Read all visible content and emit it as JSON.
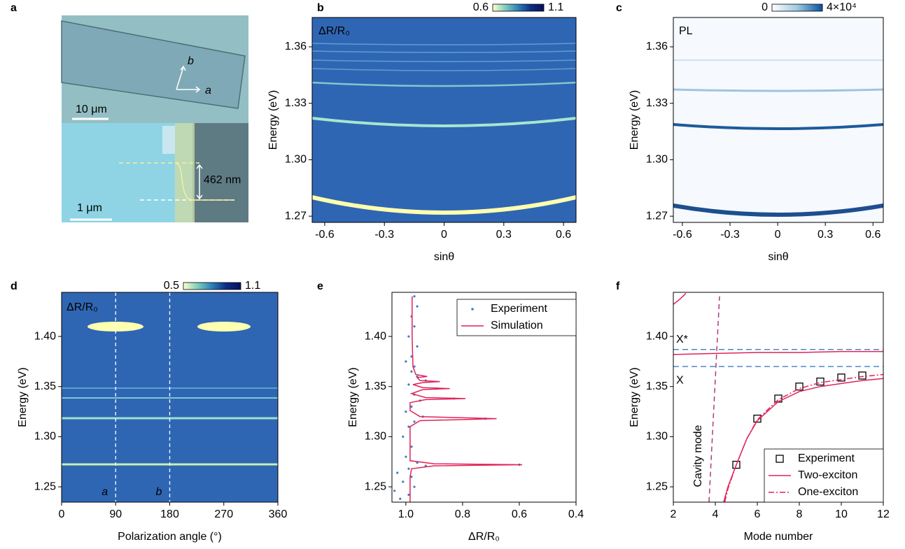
{
  "chart_data": [
    {
      "type": "image",
      "panel": "a",
      "labels": [
        "b",
        "a",
        "10 μm",
        "1 μm",
        "462 nm"
      ]
    },
    {
      "type": "heatmap",
      "panel": "b",
      "overlay_label": "ΔR/R₀",
      "xlabel": "sinθ",
      "ylabel": "Energy (eV)",
      "xlim": [
        -0.663,
        0.663
      ],
      "xticks": [
        -0.6,
        -0.3,
        0,
        0.3,
        0.6
      ],
      "ylim": [
        1.2667,
        1.3756
      ],
      "yticks": [
        1.27,
        {
          "value": 1.3,
          "label": "1.30"
        },
        1.33,
        1.36
      ],
      "colorbar": {
        "ticks": [
          0.6,
          1.1
        ],
        "colors": [
          "#ffffcc",
          "#7fcdbb",
          "#2c7fb8",
          "#0c2c84",
          "#08105a"
        ]
      }
    },
    {
      "type": "heatmap",
      "panel": "c",
      "overlay_label": "PL",
      "xlabel": "sinθ",
      "ylabel": "Energy (eV)",
      "xlim": [
        -0.657,
        0.665
      ],
      "xticks": [
        -0.6,
        -0.3,
        0,
        0.3,
        0.6
      ],
      "ylim": [
        1.2667,
        1.3756
      ],
      "yticks": [
        1.27,
        {
          "value": 1.3,
          "label": "1.30"
        },
        1.33,
        1.36
      ],
      "colorbar": {
        "ticks": [
          0,
          {
            "value": 40000,
            "label": "4×10⁴"
          }
        ],
        "colors": [
          "#ffffff",
          "#9ecae1",
          "#08519c"
        ]
      }
    },
    {
      "type": "heatmap",
      "panel": "d",
      "overlay_label": "ΔR/R₀",
      "xlabel": "Polarization angle (°)",
      "ylabel": "Energy (eV)",
      "xlim": [
        0,
        360
      ],
      "xticks": [
        0,
        90,
        180,
        270,
        360
      ],
      "ylim": [
        1.2347,
        1.444
      ],
      "yticks": [
        1.25,
        {
          "value": 1.3,
          "label": "1.30"
        },
        1.35,
        {
          "value": 1.4,
          "label": "1.40"
        }
      ],
      "vlines": [
        {
          "value": 90,
          "label": "a"
        },
        {
          "value": 180,
          "label": "b"
        }
      ],
      "colorbar": {
        "ticks": [
          0.5,
          1.1
        ],
        "colors": [
          "#ffffcc",
          "#7fcdbb",
          "#2c7fb8",
          "#0c2c84",
          "#08105a"
        ]
      }
    },
    {
      "type": "scatter",
      "panel": "e",
      "xlabel": "ΔR/R₀",
      "ylabel": "Energy (eV)",
      "xlim": [
        1.049,
        0.4
      ],
      "xticks": [
        {
          "value": 1,
          "label": "1.0"
        },
        0.8,
        0.6,
        0.4
      ],
      "ylim": [
        1.2347,
        1.444
      ],
      "yticks": [
        1.25,
        {
          "value": 1.3,
          "label": "1.30"
        },
        1.35,
        {
          "value": 1.4,
          "label": "1.40"
        }
      ],
      "legend": "upper right",
      "series": [
        {
          "name": "Experiment",
          "color": "#3d7fc1",
          "marker": "dot",
          "x": [
            1.02,
            0.99,
            1.04,
            0.97,
            1.01,
            0.98,
            1.03,
            0.99,
            0.93,
            0.6,
            0.96,
            1.0,
            0.98,
            1.01,
            0.99,
            0.97,
            0.72,
            0.94,
            1.0,
            0.98,
            0.95,
            0.83,
            0.97,
            0.89,
            0.99,
            0.93,
            0.96,
            0.98,
            0.97,
            1.0,
            0.98,
            0.96,
            0.99,
            0.97,
            0.98,
            0.96,
            0.97
          ],
          "values": [
            1.238,
            1.242,
            1.246,
            1.25,
            1.255,
            1.26,
            1.264,
            1.268,
            1.271,
            1.272,
            1.274,
            1.28,
            1.29,
            1.3,
            1.31,
            1.315,
            1.318,
            1.32,
            1.325,
            1.33,
            1.336,
            1.338,
            1.342,
            1.348,
            1.352,
            1.356,
            1.36,
            1.365,
            1.37,
            1.375,
            1.38,
            1.39,
            1.4,
            1.41,
            1.42,
            1.43,
            1.44
          ]
        },
        {
          "name": "Simulation",
          "color": "#e0245a",
          "linestyle": "solid",
          "x": [
            0.985,
            0.985,
            0.98,
            0.9,
            0.59,
            0.9,
            0.985,
            0.985,
            0.95,
            0.68,
            0.95,
            0.985,
            0.985,
            0.93,
            0.79,
            0.93,
            0.98,
            0.94,
            0.845,
            0.94,
            0.975,
            0.94,
            0.88,
            0.95,
            0.96,
            0.925,
            0.965,
            0.975,
            0.978,
            0.978
          ],
          "values": [
            1.235,
            1.26,
            1.268,
            1.271,
            1.272,
            1.273,
            1.276,
            1.31,
            1.316,
            1.318,
            1.32,
            1.326,
            1.334,
            1.337,
            1.338,
            1.339,
            1.343,
            1.347,
            1.348,
            1.349,
            1.352,
            1.354,
            1.355,
            1.356,
            1.359,
            1.36,
            1.362,
            1.37,
            1.4,
            1.44
          ]
        }
      ]
    },
    {
      "type": "line",
      "panel": "f",
      "xlabel": "Mode number",
      "ylabel": "Energy (eV)",
      "xlim": [
        2,
        12
      ],
      "xticks": [
        2,
        4,
        6,
        8,
        10,
        12
      ],
      "ylim": [
        1.2347,
        1.444
      ],
      "yticks": [
        1.25,
        {
          "value": 1.3,
          "label": "1.30"
        },
        1.35,
        {
          "value": 1.4,
          "label": "1.40"
        }
      ],
      "legend": "lower right",
      "hlines": [
        {
          "name": "X",
          "value": 1.37,
          "color": "#3d7fc1"
        },
        {
          "name": "X*",
          "value": 1.387,
          "color": "#3d7fc1"
        }
      ],
      "annotation_lines": [
        {
          "name": "Cavity mode",
          "color": "#b03a7a",
          "x": [
            3.7,
            4.2
          ],
          "values": [
            1.235,
            1.44
          ]
        }
      ],
      "series": [
        {
          "name": "Experiment",
          "color": "#000000",
          "marker": "square",
          "x": [
            5,
            6,
            7,
            8,
            9,
            10,
            11
          ],
          "values": [
            1.272,
            1.318,
            1.338,
            1.35,
            1.355,
            1.359,
            1.361
          ]
        },
        {
          "name": "Two-exciton",
          "color": "#e0245a",
          "linestyle": "solid",
          "x": [
            4.4,
            4.6,
            5,
            5.5,
            6,
            7,
            8,
            9,
            10,
            11,
            12,
            null,
            2,
            4,
            6,
            8,
            10,
            12,
            null,
            2,
            2.3,
            2.6
          ],
          "values": [
            1.235,
            1.25,
            1.272,
            1.298,
            1.316,
            1.335,
            1.345,
            1.35,
            1.353,
            1.356,
            1.358,
            null,
            1.382,
            1.383,
            1.384,
            1.384,
            1.385,
            1.385,
            null,
            1.432,
            1.437,
            1.443
          ]
        },
        {
          "name": "One-exciton",
          "color": "#e0245a",
          "linestyle": "dashdot",
          "x": [
            4.45,
            4.6,
            5,
            5.5,
            6,
            7,
            8,
            9,
            10,
            11,
            12
          ],
          "values": [
            1.235,
            1.248,
            1.272,
            1.298,
            1.317,
            1.337,
            1.348,
            1.354,
            1.357,
            1.36,
            1.362
          ]
        }
      ]
    }
  ]
}
